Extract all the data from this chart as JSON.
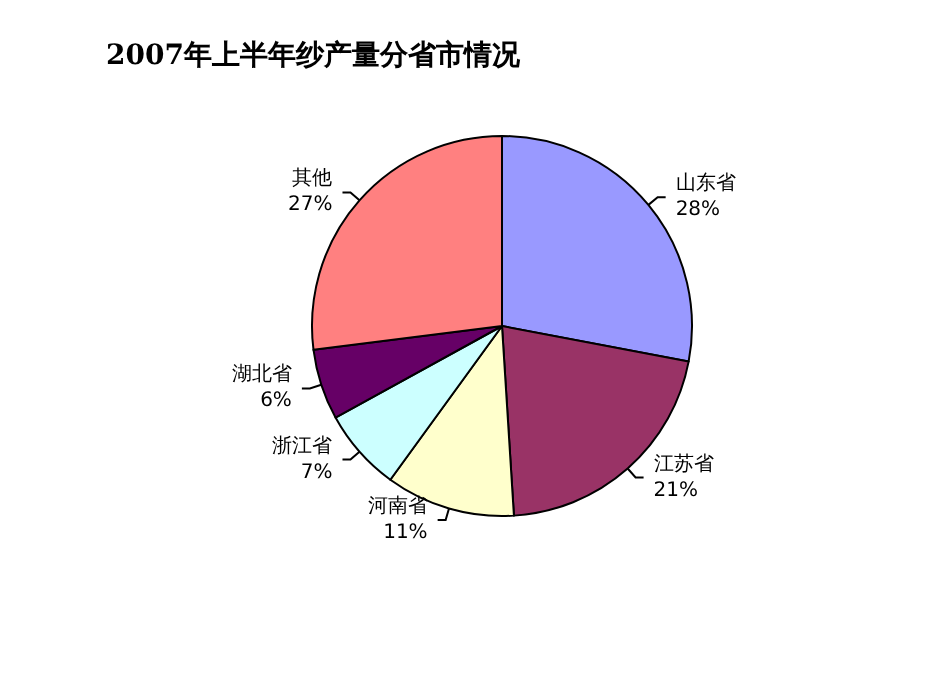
{
  "chart_data": {
    "type": "pie",
    "title": "2007年上半年纱产量分省市情况",
    "categories": [
      "山东省",
      "江苏省",
      "河南省",
      "浙江省",
      "湖北省",
      "其他"
    ],
    "values": [
      28,
      21,
      11,
      7,
      6,
      27
    ],
    "value_labels": [
      "28%",
      "21%",
      "11%",
      "7%",
      "6%",
      "27%"
    ],
    "colors": [
      "#9999ff",
      "#993366",
      "#ffffcc",
      "#ccffff",
      "#660066",
      "#ff8080"
    ],
    "legend": false
  }
}
